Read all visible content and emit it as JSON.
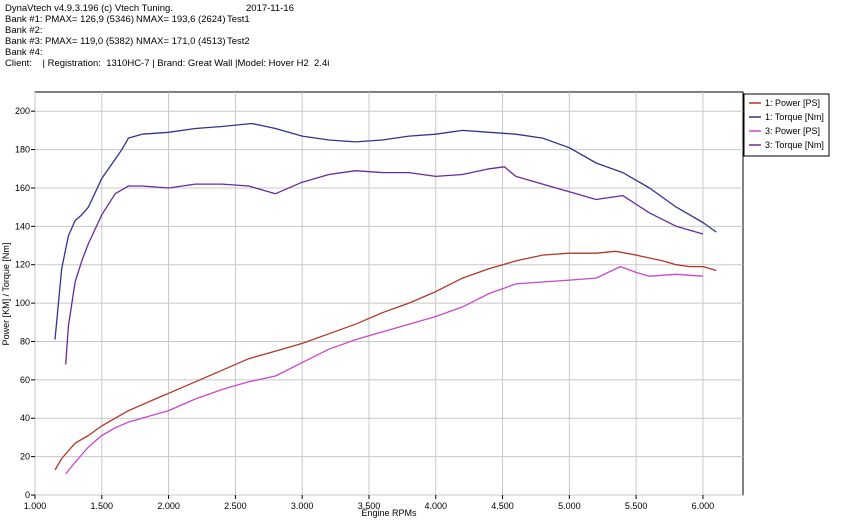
{
  "header": {
    "app": "DynaVtech v4.9.3.196 (c) Vtech Tuning.",
    "date": "2017-11-16",
    "banks": [
      {
        "label": "Bank #1:",
        "pmax": "PMAX= 126,9 (5346)",
        "nmax": "NMAX= 193,6 (2624)",
        "test": "Test1"
      },
      {
        "label": "Bank #2:",
        "pmax": "",
        "nmax": "",
        "test": ""
      },
      {
        "label": "Bank #3:",
        "pmax": "PMAX= 119,0 (5382)",
        "nmax": "NMAX= 171,0 (4513)",
        "test": "Test2"
      },
      {
        "label": "Bank #4:",
        "pmax": "",
        "nmax": "",
        "test": ""
      }
    ],
    "client_line": "Client:    | Registration:  1310HC-7 | Brand: Great Wall |Model: Hover H2  2.4i"
  },
  "chart_data": {
    "type": "line",
    "xlabel": "Engine RPMs",
    "ylabel": "Power [KM] / Torque [Nm]",
    "xlim": [
      1000,
      6300
    ],
    "ylim": [
      0,
      210
    ],
    "x_ticks": [
      1000,
      1500,
      2000,
      2500,
      3000,
      3500,
      4000,
      4500,
      5000,
      5500,
      6000
    ],
    "x_tick_labels": [
      "1.000",
      "1.500",
      "2.000",
      "2.500",
      "3.000",
      "3.500",
      "4.000",
      "4.500",
      "5.000",
      "5.500",
      "6.000"
    ],
    "y_ticks": [
      0,
      20,
      40,
      60,
      80,
      100,
      120,
      140,
      160,
      180,
      200
    ],
    "y_tick_labels": [
      "0",
      "20",
      "40",
      "60",
      "80",
      "100",
      "120",
      "140",
      "160",
      "180",
      "200"
    ],
    "grid": true,
    "legend_position": "right",
    "series": [
      {
        "name": "1: Power [PS]",
        "color": "#b03828",
        "x": [
          1150,
          1200,
          1300,
          1400,
          1500,
          1600,
          1700,
          1800,
          1900,
          2000,
          2200,
          2400,
          2600,
          2800,
          3000,
          3200,
          3400,
          3600,
          3800,
          4000,
          4200,
          4400,
          4600,
          4800,
          5000,
          5200,
          5346,
          5500,
          5700,
          5800,
          5900,
          6000,
          6100
        ],
        "y": [
          13,
          19,
          27,
          31,
          36,
          40,
          44,
          47,
          50,
          53,
          59,
          65,
          71,
          75,
          79,
          84,
          89,
          95,
          100,
          106,
          113,
          118,
          122,
          125,
          126,
          126,
          127,
          125,
          122,
          120,
          119,
          119,
          117
        ]
      },
      {
        "name": "1: Torque [Nm]",
        "color": "#33338c",
        "x": [
          1150,
          1200,
          1250,
          1300,
          1350,
          1400,
          1500,
          1600,
          1650,
          1700,
          1800,
          2000,
          2200,
          2400,
          2624,
          2800,
          3000,
          3200,
          3400,
          3600,
          3800,
          4000,
          4200,
          4400,
          4600,
          4800,
          5000,
          5200,
          5400,
          5600,
          5800,
          6000,
          6100
        ],
        "y": [
          81,
          118,
          135,
          143,
          146,
          150,
          165,
          175,
          180,
          186,
          188,
          189,
          191,
          192,
          193.6,
          191,
          187,
          185,
          184,
          185,
          187,
          188,
          190,
          189,
          188,
          186,
          181,
          173,
          168,
          160,
          150,
          142,
          137
        ]
      },
      {
        "name": "3: Power [PS]",
        "color": "#c848c8",
        "x": [
          1230,
          1300,
          1400,
          1500,
          1600,
          1700,
          1800,
          2000,
          2200,
          2400,
          2600,
          2800,
          3000,
          3200,
          3400,
          3600,
          3800,
          4000,
          4200,
          4400,
          4600,
          4800,
          5000,
          5200,
          5382,
          5500,
          5600,
          5800,
          6000
        ],
        "y": [
          11,
          17,
          25,
          31,
          35,
          38,
          40,
          44,
          50,
          55,
          59,
          62,
          69,
          76,
          81,
          85,
          89,
          93,
          98,
          105,
          110,
          111,
          112,
          113,
          119,
          116,
          114,
          115,
          114
        ]
      },
      {
        "name": "3: Torque [Nm]",
        "color": "#6a2a9a",
        "x": [
          1230,
          1250,
          1300,
          1350,
          1400,
          1500,
          1600,
          1700,
          1800,
          2000,
          2200,
          2400,
          2600,
          2800,
          3000,
          3200,
          3400,
          3600,
          3800,
          4000,
          4200,
          4400,
          4513,
          4600,
          4800,
          5000,
          5200,
          5300,
          5400,
          5600,
          5800,
          6000
        ],
        "y": [
          68,
          88,
          111,
          122,
          131,
          146,
          157,
          161,
          161,
          160,
          162,
          162,
          161,
          157,
          163,
          167,
          169,
          168,
          168,
          166,
          167,
          170,
          171,
          166,
          162,
          158,
          154,
          155,
          156,
          147,
          140,
          136
        ]
      }
    ]
  }
}
